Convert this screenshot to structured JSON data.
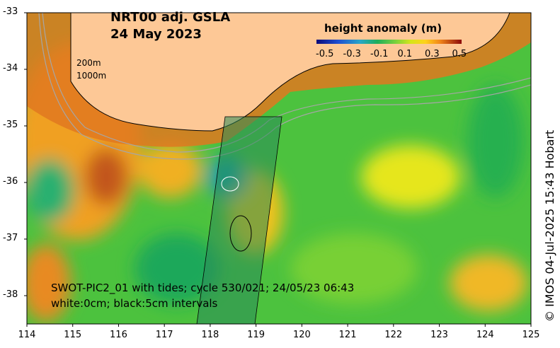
{
  "title": {
    "line1": "NRT00 adj. GSLA",
    "line2": "24 May 2023"
  },
  "colorbar": {
    "label": "height anomaly (m)",
    "ticks": [
      "-0.5",
      "-0.3",
      "-0.1",
      "0.1",
      "0.3",
      "0.5"
    ],
    "range": [
      -0.5,
      0.5
    ]
  },
  "axes": {
    "x_ticks": [
      "114",
      "115",
      "116",
      "117",
      "118",
      "119",
      "120",
      "121",
      "122",
      "123",
      "124",
      "125"
    ],
    "y_ticks": [
      "-33",
      "-34",
      "-35",
      "-36",
      "-37",
      "-38"
    ],
    "lon_range": [
      114,
      125
    ],
    "lat_range": [
      -38.5,
      -33
    ]
  },
  "contours": {
    "shallow": "200m",
    "deep": "1000m"
  },
  "swot_caption": {
    "line1": "SWOT-PIC2_01 with tides; cycle 530/021; 24/05/23 06:43",
    "line2": "white:0cm; black:5cm intervals"
  },
  "credit": "© IMOS 04-Jul-2025 15:43 Hobart",
  "colors": {
    "land": "#fdc896",
    "coast": "#000000",
    "isobath": "#a6a6a6"
  }
}
